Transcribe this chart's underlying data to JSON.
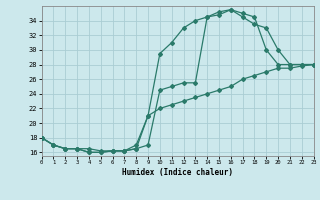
{
  "xlabel": "Humidex (Indice chaleur)",
  "bg_color": "#cce8ec",
  "grid_color": "#aacdd4",
  "line_color": "#2a7a6a",
  "line1_x": [
    0,
    1,
    2,
    3,
    4,
    5,
    6,
    7,
    8,
    9,
    10,
    11,
    12,
    13,
    14,
    15,
    16,
    17,
    18,
    19,
    20,
    21,
    22,
    23
  ],
  "line1_y": [
    18,
    17,
    16.5,
    16.5,
    16,
    16,
    16.2,
    16.2,
    17,
    21,
    29.5,
    31,
    33,
    34,
    34.5,
    35.2,
    35.5,
    35,
    34.5,
    30,
    28,
    28,
    28,
    28
  ],
  "line2_x": [
    0,
    1,
    2,
    3,
    4,
    5,
    6,
    7,
    8,
    9,
    10,
    11,
    12,
    13,
    14,
    15,
    16,
    17,
    18,
    19,
    20,
    21,
    22,
    23
  ],
  "line2_y": [
    18,
    17,
    16.5,
    16.5,
    16.5,
    16.2,
    16.2,
    16.2,
    16.5,
    17,
    24.5,
    25,
    25.5,
    25.5,
    34.5,
    34.8,
    35.5,
    34.5,
    33.5,
    33,
    30,
    28,
    28,
    28
  ],
  "line3_x": [
    0,
    1,
    2,
    3,
    4,
    5,
    6,
    7,
    8,
    9,
    10,
    11,
    12,
    13,
    14,
    15,
    16,
    17,
    18,
    19,
    20,
    21,
    22,
    23
  ],
  "line3_y": [
    18,
    17,
    16.5,
    16.5,
    16,
    16,
    16.2,
    16.2,
    16.5,
    21,
    22,
    22.5,
    23,
    23.5,
    24,
    24.5,
    25,
    26,
    26.5,
    27,
    27.5,
    27.5,
    27.8,
    28
  ],
  "xlim": [
    0,
    23
  ],
  "ylim": [
    15.5,
    36
  ],
  "yticks": [
    16,
    18,
    20,
    22,
    24,
    26,
    28,
    30,
    32,
    34
  ],
  "xticks": [
    0,
    1,
    2,
    3,
    4,
    5,
    6,
    7,
    8,
    9,
    10,
    11,
    12,
    13,
    14,
    15,
    16,
    17,
    18,
    19,
    20,
    21,
    22,
    23
  ]
}
